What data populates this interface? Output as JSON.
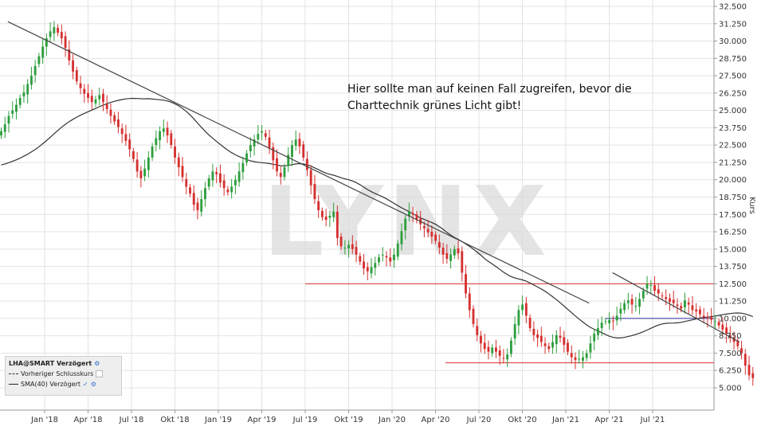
{
  "chart_data": {
    "type": "candlestick",
    "title": "",
    "ylabel": "Kurs",
    "ylim": [
      4.0,
      33.0
    ],
    "y_ticks": [
      "32.500",
      "31.250",
      "30.000",
      "28.750",
      "27.500",
      "26.250",
      "25.000",
      "23.750",
      "22.500",
      "21.250",
      "20.000",
      "18.750",
      "17.500",
      "16.250",
      "15.000",
      "13.750",
      "12.500",
      "11.250",
      "10.000",
      "8.750",
      "7.500",
      "6.250",
      "5.000"
    ],
    "y_tick_values": [
      32.5,
      31.25,
      30.0,
      28.75,
      27.5,
      26.25,
      25.0,
      23.75,
      22.5,
      21.25,
      20.0,
      18.75,
      17.5,
      16.25,
      15.0,
      13.75,
      12.5,
      11.25,
      10.0,
      8.75,
      7.5,
      6.25,
      5.0
    ],
    "x_ticks": [
      "Jan '18",
      "Apr '18",
      "Jul '18",
      "Okt '18",
      "Jan '19",
      "Apr '19",
      "Jul '19",
      "Okt '19",
      "Jan '20",
      "Apr '20",
      "Jul '20",
      "Okt '20",
      "Jan '21",
      "Apr '21",
      "Jul '21"
    ],
    "x_tick_weeks": [
      0,
      13,
      26,
      39,
      52,
      65,
      78,
      91,
      104,
      117,
      130,
      143,
      156,
      169,
      182
    ],
    "x_start_week": -13,
    "x_end_week": 212,
    "closes": [
      23.5,
      24.0,
      24.6,
      25.0,
      25.4,
      25.9,
      26.3,
      26.9,
      27.5,
      28.2,
      28.9,
      29.6,
      30.2,
      30.7,
      31.0,
      30.6,
      30.2,
      29.5,
      28.6,
      27.8,
      27.1,
      26.6,
      26.2,
      25.9,
      25.6,
      25.8,
      26.1,
      25.6,
      25.1,
      24.6,
      24.2,
      23.8,
      23.3,
      22.8,
      22.2,
      21.5,
      20.6,
      20.1,
      20.8,
      21.6,
      22.4,
      23.0,
      23.5,
      23.7,
      23.2,
      22.5,
      21.6,
      20.9,
      20.2,
      19.5,
      19.0,
      18.2,
      17.8,
      18.6,
      19.4,
      20.1,
      20.6,
      20.4,
      19.8,
      19.4,
      19.1,
      19.5,
      20.0,
      20.6,
      21.2,
      21.9,
      22.5,
      22.9,
      23.3,
      23.5,
      23.1,
      22.3,
      21.4,
      20.6,
      20.2,
      20.9,
      21.8,
      22.5,
      22.9,
      22.4,
      21.6,
      20.7,
      19.6,
      18.6,
      17.8,
      17.3,
      17.1,
      17.4,
      17.7,
      15.8,
      15.2,
      15.1,
      15.3,
      15.0,
      14.6,
      14.1,
      13.6,
      13.4,
      13.7,
      14.0,
      14.4,
      14.6,
      14.4,
      14.1,
      14.6,
      15.4,
      16.3,
      17.2,
      17.7,
      17.5,
      17.1,
      16.8,
      16.5,
      16.2,
      15.9,
      15.6,
      15.1,
      14.6,
      14.3,
      14.6,
      15.0,
      14.7,
      13.3,
      11.8,
      10.6,
      9.6,
      8.8,
      8.2,
      7.8,
      7.6,
      7.9,
      7.6,
      7.3,
      7.1,
      7.4,
      8.4,
      9.6,
      10.6,
      11.0,
      10.2,
      9.3,
      8.8,
      8.6,
      8.3,
      8.0,
      7.8,
      8.3,
      8.8,
      8.6,
      8.1,
      7.6,
      7.2,
      7.0,
      7.1,
      7.2,
      7.5,
      8.2,
      8.9,
      9.3,
      9.7,
      9.8,
      9.9,
      9.8,
      10.2,
      10.7,
      11.1,
      11.3,
      11.0,
      10.9,
      11.4,
      12.0,
      12.5,
      12.4,
      12.0,
      11.8,
      11.6,
      11.4,
      11.2,
      11.1,
      10.9,
      10.7,
      11.3,
      11.0,
      10.6,
      10.5,
      10.3,
      10.1,
      10.0,
      9.9,
      9.8,
      9.5,
      9.2,
      8.9,
      8.6,
      8.3,
      8.0,
      7.5,
      6.6,
      5.9,
      5.7
    ],
    "sma40_label": "SMA(40) Verzögert",
    "trendlines": [
      {
        "color": "#444444",
        "from": [
          -11,
          31.4
        ],
        "to": [
          163,
          11.1
        ]
      },
      {
        "color": "#444444",
        "from": [
          170,
          13.3
        ],
        "to": [
          208,
          8.3
        ]
      }
    ],
    "horizontal_lines": [
      {
        "color": "#d93030",
        "y": 12.5,
        "x_from": 78,
        "x_to": 212
      },
      {
        "color": "#d93030",
        "y": 6.8,
        "x_from": 120,
        "x_to": 212
      },
      {
        "color": "#2b2b9a",
        "y": 10.0,
        "x_from": 168,
        "x_to": 208
      }
    ],
    "colors": {
      "up": "#2e9e3e",
      "down": "#d62f2f",
      "sma": "#333333",
      "grid": "#e3e3e3"
    },
    "grid": true,
    "watermark": "LYNX",
    "annotation": [
      "Hier sollte man auf keinen Fall zugreifen, bevor die",
      "Charttechnik grünes Licht gibt!"
    ]
  },
  "legend": {
    "title": "LHA@SMART Verzögert",
    "prev_close": "Vorheriger Schlusskurs",
    "sma": "SMA(40) Verzögert"
  }
}
